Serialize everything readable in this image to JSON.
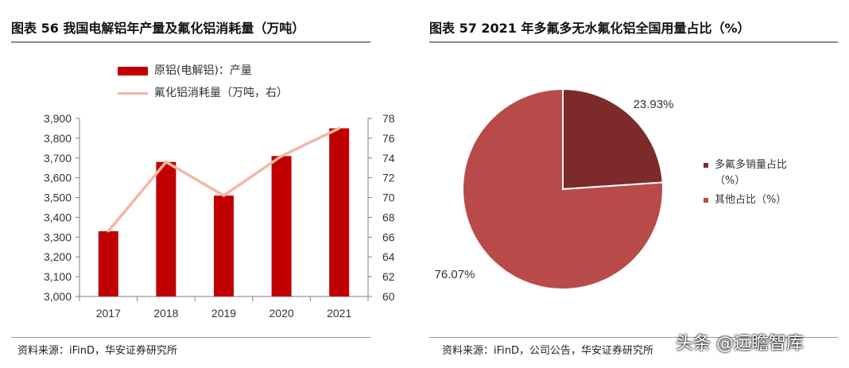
{
  "left_figure": {
    "title": "图表 56  我国电解铝年产量及氟化铝消耗量（万吨）",
    "source": "资料来源：iFinD，华安证券研究所"
  },
  "right_figure": {
    "title": "图表 57 2021 年多氟多无水氟化铝全国用量占比（%）",
    "source": "资料来源：iFinD，公司公告，华安证券研究所"
  },
  "watermark": "头条 @远瞻智库",
  "colors": {
    "bar": "#c00000",
    "line": "#f2b7a3",
    "slice_dark": "#7d2a2a",
    "slice_light": "#b94a4a"
  },
  "chart_data": [
    {
      "type": "bar",
      "categories": [
        "2017",
        "2018",
        "2019",
        "2020",
        "2021"
      ],
      "series": [
        {
          "name": "原铝(电解铝)：产量",
          "type": "bar",
          "axis": "left",
          "values": [
            3330,
            3680,
            3510,
            3710,
            3850
          ]
        },
        {
          "name": "氟化铝消耗量（万吨，右）",
          "type": "line",
          "axis": "right",
          "values": [
            66.6,
            73.6,
            70.2,
            74.2,
            77.0
          ]
        }
      ],
      "y_left": {
        "range": [
          3000,
          3900
        ],
        "ticks": [
          "3,000",
          "3,100",
          "3,200",
          "3,300",
          "3,400",
          "3,500",
          "3,600",
          "3,700",
          "3,800",
          "3,900"
        ]
      },
      "y_right": {
        "range": [
          60,
          78
        ],
        "ticks": [
          "60",
          "62",
          "64",
          "66",
          "68",
          "70",
          "72",
          "74",
          "76",
          "78"
        ]
      },
      "legend": [
        "原铝(电解铝)：产量",
        "氟化铝消耗量（万吨，右）"
      ],
      "legend_position": "top-left",
      "grid": false
    },
    {
      "type": "pie",
      "slices": [
        {
          "label": "多氟多销量占比（%）",
          "value": 23.93,
          "display": "23.93%",
          "color": "#7d2a2a"
        },
        {
          "label": "其他占比（%）",
          "value": 76.07,
          "display": "76.07%",
          "color": "#b94a4a"
        }
      ],
      "legend_position": "right",
      "legend_lines": [
        [
          "多氟多销量占比",
          "（%）"
        ],
        [
          "其他占比（%）"
        ]
      ]
    }
  ]
}
